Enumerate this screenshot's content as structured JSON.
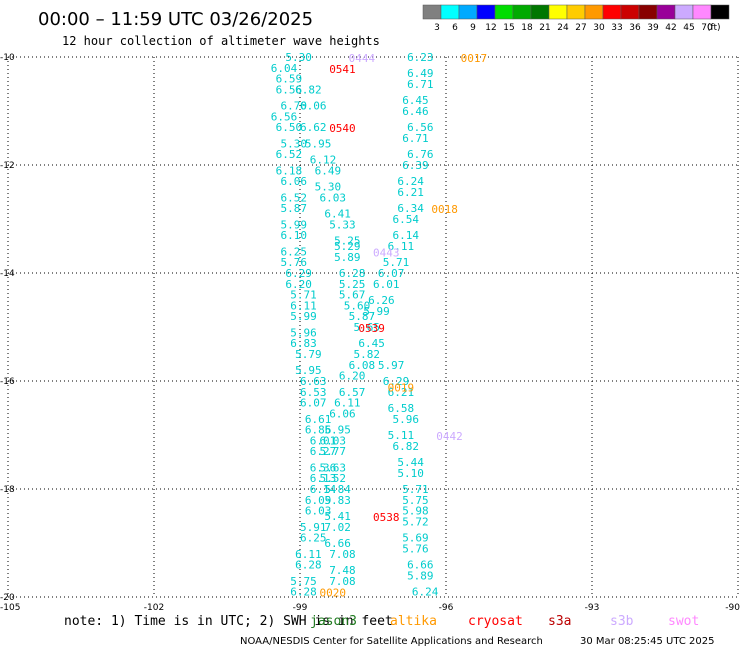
{
  "header": {
    "title": "00:00 – 11:59 UTC 03/26/2025",
    "subtitle": "12 hour collection of altimeter wave heights"
  },
  "colorbar": {
    "ticks": [
      "3",
      "6",
      "9",
      "12",
      "15",
      "18",
      "21",
      "24",
      "27",
      "30",
      "33",
      "36",
      "39",
      "42",
      "45",
      "70"
    ],
    "unit": "(ft)",
    "colors": [
      "#808080",
      "#00ffff",
      "#00aaff",
      "#0000ff",
      "#00dd00",
      "#00aa00",
      "#007700",
      "#ffff00",
      "#ffcc00",
      "#ff9900",
      "#ff0000",
      "#cc0000",
      "#880000",
      "#990099",
      "#ccaaff",
      "#ff88ff",
      "#000000"
    ]
  },
  "footer": {
    "note": "note: 1) Time is in UTC; 2) SWH is in feet",
    "missions": [
      {
        "name": "jason3",
        "color": "#1f7a1f"
      },
      {
        "name": "altika",
        "color": "#ff9900"
      },
      {
        "name": "cryosat",
        "color": "#ff0000"
      },
      {
        "name": "s3a",
        "color": "#bb0000"
      },
      {
        "name": "s3b",
        "color": "#ccaaff"
      },
      {
        "name": "swot",
        "color": "#ff88ff"
      }
    ],
    "credit": "NOAA/NESDIS Center for Satellite Applications and Research",
    "timestamp": "30 Mar 08:25:45 UTC 2025"
  },
  "chart_data": {
    "type": "scatter",
    "title": "00:00 – 11:59 UTC 03/26/2025",
    "subtitle": "12 hour collection of altimeter wave heights",
    "xlim": [
      -105,
      -90
    ],
    "ylim": [
      -20,
      -10
    ],
    "xticks": [
      -105,
      -102,
      -99,
      -96,
      -93,
      -90
    ],
    "yticks": [
      -10,
      -12,
      -14,
      -16,
      -18,
      -20
    ],
    "grid": true,
    "point_color": "#00cccc",
    "tracks": [
      {
        "name": "track-west",
        "points": [
          {
            "x": -99.3,
            "y": -10.0,
            "v": "5.30"
          },
          {
            "x": -99.6,
            "y": -10.2,
            "v": "6.04"
          },
          {
            "x": -99.5,
            "y": -10.4,
            "v": "6.59"
          },
          {
            "x": -99.5,
            "y": -10.6,
            "v": "6.56"
          },
          {
            "x": -99.4,
            "y": -10.9,
            "v": "6.70"
          },
          {
            "x": -99.6,
            "y": -11.1,
            "v": "6.56"
          },
          {
            "x": -99.5,
            "y": -11.3,
            "v": "6.50"
          },
          {
            "x": -99.4,
            "y": -11.6,
            "v": "5.30"
          },
          {
            "x": -99.5,
            "y": -11.8,
            "v": "6.52"
          },
          {
            "x": -99.5,
            "y": -12.1,
            "v": "6.18"
          },
          {
            "x": -99.4,
            "y": -12.3,
            "v": "6.06"
          },
          {
            "x": -99.4,
            "y": -12.6,
            "v": "6.52"
          },
          {
            "x": -99.4,
            "y": -12.8,
            "v": "5.87"
          },
          {
            "x": -99.4,
            "y": -13.1,
            "v": "5.99"
          },
          {
            "x": -99.4,
            "y": -13.3,
            "v": "6.10"
          },
          {
            "x": -99.4,
            "y": -13.6,
            "v": "6.25"
          },
          {
            "x": -99.4,
            "y": -13.8,
            "v": "5.76"
          },
          {
            "x": -99.3,
            "y": -14.0,
            "v": "6.29"
          },
          {
            "x": -99.3,
            "y": -14.2,
            "v": "6.20"
          },
          {
            "x": -99.2,
            "y": -14.4,
            "v": "5.71"
          },
          {
            "x": -99.2,
            "y": -14.6,
            "v": "6.11"
          },
          {
            "x": -99.2,
            "y": -14.8,
            "v": "5.99"
          },
          {
            "x": -99.2,
            "y": -15.1,
            "v": "5.96"
          },
          {
            "x": -99.2,
            "y": -15.3,
            "v": "6.83"
          },
          {
            "x": -99.1,
            "y": -15.5,
            "v": "5.79"
          },
          {
            "x": -99.1,
            "y": -15.8,
            "v": "5.95"
          },
          {
            "x": -99.0,
            "y": -16.0,
            "v": "6.63"
          },
          {
            "x": -99.0,
            "y": -16.2,
            "v": "6.53"
          },
          {
            "x": -99.0,
            "y": -16.4,
            "v": "6.07"
          },
          {
            "x": -98.9,
            "y": -16.7,
            "v": "6.61"
          },
          {
            "x": -98.9,
            "y": -16.9,
            "v": "6.86"
          },
          {
            "x": -98.8,
            "y": -17.1,
            "v": "6.01"
          },
          {
            "x": -98.8,
            "y": -17.3,
            "v": "6.27"
          },
          {
            "x": -98.8,
            "y": -17.6,
            "v": "6.36"
          },
          {
            "x": -98.8,
            "y": -17.8,
            "v": "6.13"
          },
          {
            "x": -98.8,
            "y": -18.0,
            "v": "6.14"
          },
          {
            "x": -98.9,
            "y": -18.2,
            "v": "6.09"
          },
          {
            "x": -98.9,
            "y": -18.4,
            "v": "6.03"
          },
          {
            "x": -99.0,
            "y": -18.7,
            "v": "5.91"
          },
          {
            "x": -99.0,
            "y": -18.9,
            "v": "6.25"
          },
          {
            "x": -99.1,
            "y": -19.2,
            "v": "6.11"
          },
          {
            "x": -99.1,
            "y": -19.4,
            "v": "6.28"
          },
          {
            "x": -99.2,
            "y": -19.7,
            "v": "5.75"
          },
          {
            "x": -99.2,
            "y": -19.9,
            "v": "6.28"
          }
        ]
      },
      {
        "name": "track-middle",
        "points": [
          {
            "x": -99.1,
            "y": -10.6,
            "v": "6.82"
          },
          {
            "x": -99.0,
            "y": -10.9,
            "v": "6.06"
          },
          {
            "x": -99.0,
            "y": -11.3,
            "v": "6.62"
          },
          {
            "x": -98.9,
            "y": -11.6,
            "v": "5.95"
          },
          {
            "x": -98.8,
            "y": -11.9,
            "v": "6.12"
          },
          {
            "x": -98.7,
            "y": -12.1,
            "v": "6.49"
          },
          {
            "x": -98.7,
            "y": -12.4,
            "v": "5.30"
          },
          {
            "x": -98.6,
            "y": -12.6,
            "v": "6.03"
          },
          {
            "x": -98.5,
            "y": -12.9,
            "v": "6.41"
          },
          {
            "x": -98.4,
            "y": -13.1,
            "v": "5.33"
          },
          {
            "x": -98.3,
            "y": -13.4,
            "v": "5.25"
          },
          {
            "x": -98.3,
            "y": -13.5,
            "v": "5.29"
          },
          {
            "x": -98.3,
            "y": -13.7,
            "v": "5.89"
          },
          {
            "x": -98.2,
            "y": -14.0,
            "v": "6.28"
          },
          {
            "x": -98.2,
            "y": -14.2,
            "v": "5.25"
          },
          {
            "x": -98.2,
            "y": -14.4,
            "v": "5.67"
          },
          {
            "x": -98.1,
            "y": -14.6,
            "v": "5.60"
          },
          {
            "x": -98.0,
            "y": -14.8,
            "v": "5.87"
          },
          {
            "x": -97.9,
            "y": -15.0,
            "v": "5.65"
          },
          {
            "x": -97.8,
            "y": -15.3,
            "v": "6.45"
          },
          {
            "x": -97.9,
            "y": -15.5,
            "v": "5.82"
          },
          {
            "x": -98.0,
            "y": -15.7,
            "v": "6.08"
          },
          {
            "x": -98.2,
            "y": -15.9,
            "v": "6.20"
          },
          {
            "x": -98.2,
            "y": -16.2,
            "v": "6.57"
          },
          {
            "x": -98.3,
            "y": -16.4,
            "v": "6.11"
          },
          {
            "x": -98.4,
            "y": -16.6,
            "v": "6.06"
          },
          {
            "x": -98.5,
            "y": -16.9,
            "v": "5.95"
          },
          {
            "x": -98.6,
            "y": -17.1,
            "v": "6.03"
          },
          {
            "x": -98.6,
            "y": -17.3,
            "v": "5.77"
          },
          {
            "x": -98.6,
            "y": -17.6,
            "v": "5.63"
          },
          {
            "x": -98.6,
            "y": -17.8,
            "v": "5.52"
          },
          {
            "x": -98.5,
            "y": -18.0,
            "v": "5.84"
          },
          {
            "x": -98.5,
            "y": -18.2,
            "v": "5.83"
          },
          {
            "x": -98.5,
            "y": -18.5,
            "v": "5.41"
          },
          {
            "x": -98.5,
            "y": -18.7,
            "v": "7.02"
          },
          {
            "x": -98.5,
            "y": -19.0,
            "v": "6.66"
          },
          {
            "x": -98.4,
            "y": -19.2,
            "v": "7.08"
          },
          {
            "x": -98.4,
            "y": -19.5,
            "v": "7.48"
          },
          {
            "x": -98.4,
            "y": -19.7,
            "v": "7.08"
          }
        ]
      },
      {
        "name": "track-east",
        "points": [
          {
            "x": -96.8,
            "y": -10.0,
            "v": "6.23"
          },
          {
            "x": -96.8,
            "y": -10.3,
            "v": "6.49"
          },
          {
            "x": -96.8,
            "y": -10.5,
            "v": "6.71"
          },
          {
            "x": -96.9,
            "y": -10.8,
            "v": "6.45"
          },
          {
            "x": -96.9,
            "y": -11.0,
            "v": "6.46"
          },
          {
            "x": -96.8,
            "y": -11.3,
            "v": "6.56"
          },
          {
            "x": -96.9,
            "y": -11.5,
            "v": "6.71"
          },
          {
            "x": -96.8,
            "y": -11.8,
            "v": "6.76"
          },
          {
            "x": -96.9,
            "y": -12.0,
            "v": "6.39"
          },
          {
            "x": -97.0,
            "y": -12.3,
            "v": "6.24"
          },
          {
            "x": -97.0,
            "y": -12.5,
            "v": "6.21"
          },
          {
            "x": -97.0,
            "y": -12.8,
            "v": "6.34"
          },
          {
            "x": -97.1,
            "y": -13.0,
            "v": "6.54"
          },
          {
            "x": -97.1,
            "y": -13.3,
            "v": "6.14"
          },
          {
            "x": -97.2,
            "y": -13.5,
            "v": "6.11"
          },
          {
            "x": -97.3,
            "y": -13.8,
            "v": "5.71"
          },
          {
            "x": -97.4,
            "y": -14.0,
            "v": "6.07"
          },
          {
            "x": -97.5,
            "y": -14.2,
            "v": "6.01"
          },
          {
            "x": -97.6,
            "y": -14.5,
            "v": "6.26"
          },
          {
            "x": -97.7,
            "y": -14.7,
            "v": "5.99"
          },
          {
            "x": -97.4,
            "y": -15.7,
            "v": "5.97"
          },
          {
            "x": -97.3,
            "y": -16.0,
            "v": "6.29"
          },
          {
            "x": -97.2,
            "y": -16.2,
            "v": "6.21"
          },
          {
            "x": -97.2,
            "y": -16.5,
            "v": "6.58"
          },
          {
            "x": -97.1,
            "y": -16.7,
            "v": "5.96"
          },
          {
            "x": -97.2,
            "y": -17.0,
            "v": "5.11"
          },
          {
            "x": -97.1,
            "y": -17.2,
            "v": "6.82"
          },
          {
            "x": -97.0,
            "y": -17.5,
            "v": "5.44"
          },
          {
            "x": -97.0,
            "y": -17.7,
            "v": "5.10"
          },
          {
            "x": -96.9,
            "y": -18.0,
            "v": "5.71"
          },
          {
            "x": -96.9,
            "y": -18.2,
            "v": "5.75"
          },
          {
            "x": -96.9,
            "y": -18.4,
            "v": "5.98"
          },
          {
            "x": -96.9,
            "y": -18.6,
            "v": "5.72"
          },
          {
            "x": -96.9,
            "y": -18.9,
            "v": "5.69"
          },
          {
            "x": -96.9,
            "y": -19.1,
            "v": "5.76"
          },
          {
            "x": -96.8,
            "y": -19.4,
            "v": "6.66"
          },
          {
            "x": -96.8,
            "y": -19.6,
            "v": "5.89"
          },
          {
            "x": -96.7,
            "y": -19.9,
            "v": "6.24"
          }
        ]
      }
    ],
    "time_labels": [
      {
        "x": -98.0,
        "y": -10.0,
        "v": "0444",
        "color": "#ccaaff"
      },
      {
        "x": -98.4,
        "y": -10.2,
        "v": "0541",
        "color": "#ff0000"
      },
      {
        "x": -98.4,
        "y": -11.3,
        "v": "0540",
        "color": "#ff0000"
      },
      {
        "x": -95.7,
        "y": -10.0,
        "v": "0017",
        "color": "#ff9900"
      },
      {
        "x": -96.3,
        "y": -12.8,
        "v": "0018",
        "color": "#ff9900"
      },
      {
        "x": -97.5,
        "y": -13.6,
        "v": "0443",
        "color": "#ccaaff"
      },
      {
        "x": -97.8,
        "y": -15.0,
        "v": "0539",
        "color": "#ff0000"
      },
      {
        "x": -97.2,
        "y": -16.1,
        "v": "0019",
        "color": "#ff9900"
      },
      {
        "x": -96.2,
        "y": -17.0,
        "v": "0442",
        "color": "#ccaaff"
      },
      {
        "x": -97.5,
        "y": -18.5,
        "v": "0538",
        "color": "#ff0000"
      },
      {
        "x": -98.6,
        "y": -19.9,
        "v": "0020",
        "color": "#ff9900"
      }
    ]
  }
}
